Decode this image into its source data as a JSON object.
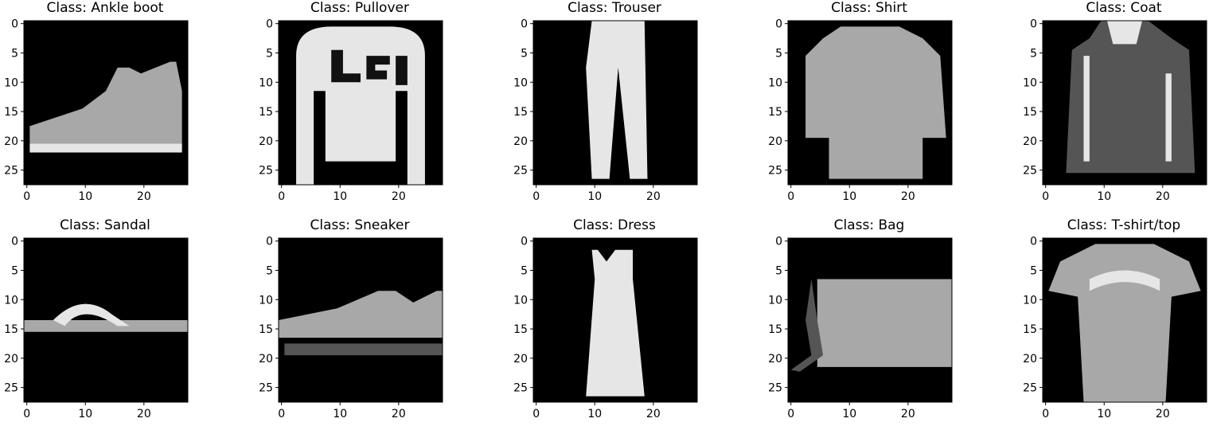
{
  "figure": {
    "panels": [
      {
        "title": "Class: Ankle boot",
        "item": "ankle-boot"
      },
      {
        "title": "Class: Pullover",
        "item": "pullover"
      },
      {
        "title": "Class: Trouser",
        "item": "trouser"
      },
      {
        "title": "Class: Shirt",
        "item": "shirt"
      },
      {
        "title": "Class: Coat",
        "item": "coat"
      },
      {
        "title": "Class: Sandal",
        "item": "sandal"
      },
      {
        "title": "Class: Sneaker",
        "item": "sneaker"
      },
      {
        "title": "Class: Dress",
        "item": "dress"
      },
      {
        "title": "Class: Bag",
        "item": "bag"
      },
      {
        "title": "Class: T-shirt/top",
        "item": "tshirt"
      }
    ],
    "y_ticks": [
      "0",
      "5",
      "10",
      "15",
      "20",
      "25"
    ],
    "x_ticks": [
      "0",
      "10",
      "20"
    ],
    "image_background": "#000000",
    "garment_colors": {
      "light": "#e6e6e6",
      "mid": "#a8a8a8",
      "dark": "#555555"
    }
  }
}
